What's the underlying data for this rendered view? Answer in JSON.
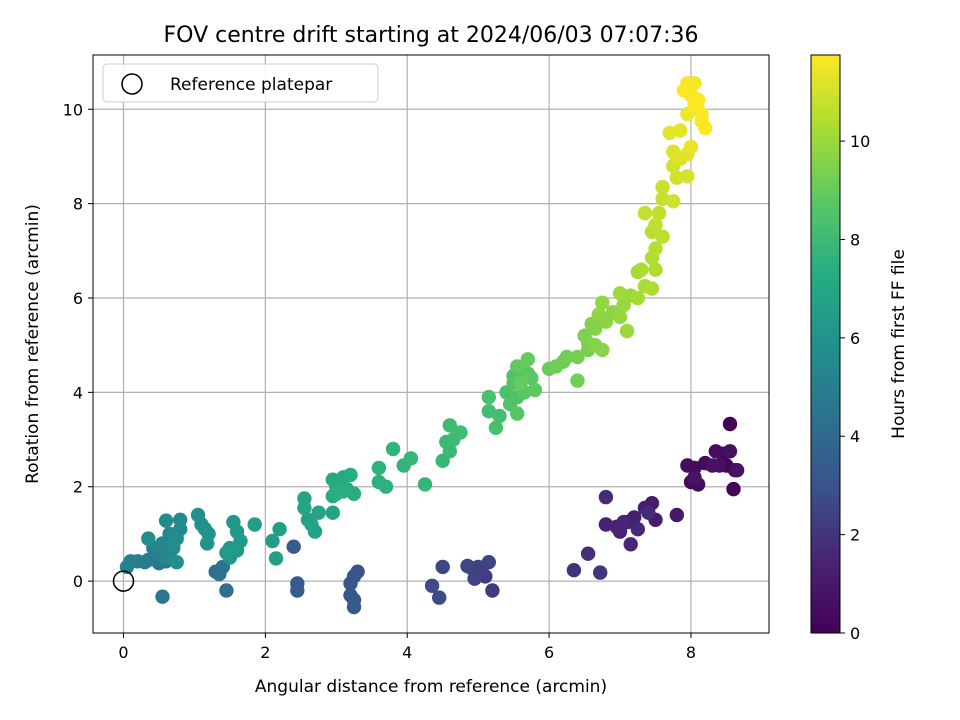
{
  "chart_data": {
    "type": "scatter",
    "title": "FOV centre drift starting at 2024/06/03 07:07:36",
    "xlabel": "Angular distance from reference (arcmin)",
    "ylabel": "Rotation from reference (arcmin)",
    "colorbar_label": "Hours from first FF file",
    "xlim": [
      -0.43,
      9.1
    ],
    "ylim": [
      -1.1,
      11.15
    ],
    "clim": [
      0,
      11.75
    ],
    "colormap": "viridis",
    "x_ticks": [
      0,
      2,
      4,
      6,
      8
    ],
    "y_ticks": [
      0,
      2,
      4,
      6,
      8,
      10
    ],
    "colorbar_ticks": [
      0,
      2,
      4,
      6,
      8,
      10
    ],
    "grid": true,
    "legend": {
      "position": "top-left",
      "entries": [
        "Reference platepar"
      ]
    },
    "reference_point": {
      "x": 0,
      "y": 0
    },
    "points": [
      [
        8.55,
        3.33,
        0.05
      ],
      [
        8.45,
        2.7,
        0.1
      ],
      [
        8.5,
        2.45,
        0.15
      ],
      [
        8.6,
        1.95,
        0.2
      ],
      [
        8.62,
        2.35,
        0.25
      ],
      [
        8.2,
        2.5,
        0.3
      ],
      [
        8.05,
        2.4,
        0.35
      ],
      [
        8.0,
        2.1,
        0.4
      ],
      [
        8.1,
        2.05,
        0.45
      ],
      [
        7.95,
        2.45,
        0.5
      ],
      [
        8.35,
        2.75,
        0.55
      ],
      [
        8.4,
        2.45,
        0.6
      ],
      [
        8.55,
        2.75,
        0.65
      ],
      [
        8.3,
        2.45,
        0.7
      ],
      [
        8.05,
        2.2,
        0.75
      ],
      [
        8.65,
        2.35,
        0.8
      ],
      [
        7.8,
        1.4,
        1.0
      ],
      [
        7.5,
        1.3,
        1.1
      ],
      [
        7.45,
        1.65,
        1.15
      ],
      [
        7.35,
        1.55,
        1.2
      ],
      [
        7.2,
        1.35,
        1.25
      ],
      [
        7.1,
        1.25,
        1.3
      ],
      [
        7.0,
        1.05,
        1.35
      ],
      [
        6.8,
        1.2,
        1.4
      ],
      [
        6.95,
        1.15,
        1.45
      ],
      [
        7.05,
        1.25,
        1.5
      ],
      [
        7.15,
        0.78,
        1.55
      ],
      [
        7.25,
        1.1,
        1.6
      ],
      [
        7.4,
        1.45,
        1.65
      ],
      [
        6.8,
        1.78,
        1.7
      ],
      [
        6.55,
        0.58,
        1.8
      ],
      [
        6.35,
        0.23,
        1.9
      ],
      [
        6.72,
        0.18,
        2.0
      ],
      [
        5.2,
        -0.2,
        2.2
      ],
      [
        5.1,
        0.1,
        2.25
      ],
      [
        5.0,
        0.3,
        2.3
      ],
      [
        4.9,
        0.28,
        2.35
      ],
      [
        5.05,
        0.25,
        2.4
      ],
      [
        4.95,
        0.05,
        2.45
      ],
      [
        5.15,
        0.4,
        2.5
      ],
      [
        4.85,
        0.32,
        2.55
      ],
      [
        4.5,
        0.3,
        2.6
      ],
      [
        4.45,
        -0.35,
        2.7
      ],
      [
        4.35,
        -0.1,
        2.75
      ],
      [
        3.3,
        0.2,
        3.0
      ],
      [
        3.25,
        0.1,
        3.05
      ],
      [
        3.2,
        -0.05,
        3.1
      ],
      [
        3.25,
        -0.4,
        3.15
      ],
      [
        3.2,
        -0.3,
        3.2
      ],
      [
        3.25,
        -0.55,
        3.25
      ],
      [
        2.45,
        -0.05,
        3.3
      ],
      [
        2.45,
        -0.2,
        3.35
      ],
      [
        2.4,
        0.73,
        3.4
      ],
      [
        1.45,
        -0.2,
        4.2
      ],
      [
        1.3,
        0.2,
        4.3
      ],
      [
        1.35,
        0.15,
        4.35
      ],
      [
        1.4,
        0.3,
        4.4
      ],
      [
        0.55,
        -0.33,
        4.6
      ],
      [
        0.6,
        0.42,
        4.65
      ],
      [
        0.5,
        0.38,
        4.7
      ],
      [
        0.35,
        0.45,
        4.8
      ],
      [
        0.2,
        0.42,
        4.9
      ],
      [
        0.3,
        0.4,
        4.95
      ],
      [
        0.1,
        0.42,
        5.0
      ],
      [
        0.05,
        0.3,
        5.05
      ],
      [
        0.42,
        0.7,
        5.1
      ],
      [
        0.5,
        0.6,
        5.15
      ],
      [
        0.65,
        0.55,
        5.2
      ],
      [
        0.55,
        0.8,
        5.25
      ],
      [
        0.7,
        0.7,
        5.3
      ],
      [
        0.6,
        0.5,
        5.35
      ],
      [
        0.75,
        0.9,
        5.4
      ],
      [
        0.65,
        1.0,
        5.45
      ],
      [
        0.8,
        1.1,
        5.5
      ],
      [
        0.6,
        1.28,
        5.55
      ],
      [
        0.8,
        1.3,
        5.6
      ],
      [
        0.72,
        0.9,
        5.65
      ],
      [
        0.7,
        0.75,
        5.7
      ],
      [
        0.35,
        0.9,
        5.75
      ],
      [
        0.75,
        0.4,
        5.8
      ],
      [
        1.05,
        1.4,
        5.85
      ],
      [
        1.1,
        1.2,
        5.9
      ],
      [
        1.15,
        1.1,
        5.95
      ],
      [
        1.2,
        1.0,
        6.0
      ],
      [
        1.18,
        0.8,
        6.05
      ],
      [
        1.5,
        0.5,
        6.1
      ],
      [
        1.5,
        0.7,
        6.15
      ],
      [
        1.55,
        1.25,
        6.2
      ],
      [
        1.6,
        1.05,
        6.25
      ],
      [
        1.65,
        0.85,
        6.3
      ],
      [
        1.6,
        0.65,
        6.35
      ],
      [
        1.45,
        0.6,
        6.4
      ],
      [
        1.85,
        1.2,
        6.45
      ],
      [
        2.1,
        0.85,
        6.5
      ],
      [
        2.15,
        0.48,
        6.55
      ],
      [
        2.2,
        1.1,
        6.6
      ],
      [
        2.6,
        1.3,
        6.65
      ],
      [
        2.75,
        1.45,
        6.7
      ],
      [
        2.7,
        1.05,
        6.75
      ],
      [
        2.65,
        1.2,
        6.8
      ],
      [
        2.95,
        1.45,
        6.85
      ],
      [
        2.55,
        1.55,
        6.9
      ],
      [
        2.55,
        1.75,
        6.95
      ],
      [
        2.95,
        1.8,
        7.0
      ],
      [
        3.0,
        2.0,
        7.05
      ],
      [
        3.05,
        2.1,
        7.1
      ],
      [
        2.95,
        2.15,
        7.15
      ],
      [
        3.1,
        2.2,
        7.2
      ],
      [
        3.15,
        1.95,
        7.25
      ],
      [
        3.25,
        1.85,
        7.3
      ],
      [
        3.2,
        2.25,
        7.35
      ],
      [
        3.0,
        1.85,
        7.4
      ],
      [
        3.1,
        1.9,
        7.45
      ],
      [
        3.6,
        2.1,
        7.5
      ],
      [
        3.7,
        2.0,
        7.55
      ],
      [
        3.6,
        2.4,
        7.6
      ],
      [
        3.8,
        2.8,
        7.65
      ],
      [
        3.95,
        2.45,
        7.7
      ],
      [
        4.05,
        2.6,
        7.75
      ],
      [
        4.25,
        2.05,
        7.8
      ],
      [
        4.5,
        2.55,
        7.85
      ],
      [
        4.6,
        2.75,
        7.9
      ],
      [
        4.55,
        2.95,
        7.95
      ],
      [
        4.65,
        3.0,
        8.0
      ],
      [
        4.6,
        3.3,
        8.05
      ],
      [
        4.75,
        3.15,
        8.1
      ],
      [
        5.15,
        3.6,
        8.15
      ],
      [
        5.3,
        3.5,
        8.2
      ],
      [
        5.25,
        3.25,
        8.25
      ],
      [
        5.15,
        3.9,
        8.3
      ],
      [
        5.4,
        4.0,
        8.35
      ],
      [
        5.5,
        4.35,
        8.4
      ],
      [
        5.55,
        3.9,
        8.45
      ],
      [
        5.45,
        3.75,
        8.5
      ],
      [
        5.5,
        4.2,
        8.55
      ],
      [
        5.6,
        4.45,
        8.6
      ],
      [
        5.55,
        3.55,
        8.65
      ],
      [
        5.7,
        4.4,
        8.7
      ],
      [
        5.65,
        4.0,
        8.75
      ],
      [
        5.75,
        4.3,
        8.8
      ],
      [
        5.8,
        4.05,
        8.85
      ],
      [
        5.55,
        4.55,
        8.9
      ],
      [
        5.7,
        4.7,
        8.95
      ],
      [
        5.6,
        4.2,
        9.0
      ],
      [
        6.0,
        4.5,
        9.05
      ],
      [
        6.1,
        4.55,
        9.1
      ],
      [
        6.2,
        4.65,
        9.15
      ],
      [
        6.25,
        4.75,
        9.2
      ],
      [
        6.4,
        4.25,
        9.25
      ],
      [
        6.4,
        4.75,
        9.3
      ],
      [
        6.55,
        4.9,
        9.35
      ],
      [
        6.55,
        5.05,
        9.4
      ],
      [
        6.5,
        5.2,
        9.45
      ],
      [
        6.6,
        5.45,
        9.5
      ],
      [
        6.65,
        5.35,
        9.55
      ],
      [
        6.65,
        5.0,
        9.6
      ],
      [
        6.75,
        4.9,
        9.65
      ],
      [
        6.8,
        5.5,
        9.7
      ],
      [
        6.9,
        5.7,
        9.75
      ],
      [
        6.7,
        5.65,
        9.8
      ],
      [
        6.75,
        5.9,
        9.85
      ],
      [
        7.0,
        5.6,
        9.9
      ],
      [
        7.05,
        5.85,
        9.95
      ],
      [
        7.1,
        5.3,
        10.0
      ],
      [
        7.15,
        6.05,
        10.05
      ],
      [
        7.0,
        6.1,
        10.1
      ],
      [
        7.25,
        6.0,
        10.15
      ],
      [
        7.25,
        6.55,
        10.2
      ],
      [
        7.35,
        6.25,
        10.25
      ],
      [
        7.3,
        6.6,
        10.3
      ],
      [
        7.45,
        6.2,
        10.35
      ],
      [
        7.5,
        6.6,
        10.4
      ],
      [
        7.45,
        6.85,
        10.45
      ],
      [
        7.5,
        7.05,
        10.5
      ],
      [
        7.45,
        7.4,
        10.55
      ],
      [
        7.6,
        7.3,
        10.6
      ],
      [
        7.5,
        7.55,
        10.65
      ],
      [
        7.55,
        7.8,
        10.7
      ],
      [
        7.35,
        7.8,
        10.75
      ],
      [
        7.6,
        8.1,
        10.8
      ],
      [
        7.6,
        8.35,
        10.85
      ],
      [
        7.75,
        8.05,
        10.9
      ],
      [
        7.8,
        8.55,
        10.95
      ],
      [
        7.75,
        8.8,
        11.0
      ],
      [
        7.95,
        8.58,
        11.05
      ],
      [
        7.8,
        9.0,
        11.1
      ],
      [
        7.75,
        9.1,
        11.15
      ],
      [
        7.85,
        8.95,
        11.2
      ],
      [
        7.95,
        9.05,
        11.25
      ],
      [
        7.7,
        9.5,
        11.3
      ],
      [
        7.85,
        9.55,
        11.35
      ],
      [
        8.0,
        9.2,
        11.4
      ],
      [
        7.95,
        9.9,
        11.45
      ],
      [
        8.1,
        10.0,
        11.5
      ],
      [
        8.0,
        10.3,
        11.55
      ],
      [
        7.95,
        10.55,
        11.6
      ],
      [
        8.05,
        10.55,
        11.65
      ],
      [
        8.1,
        10.2,
        11.7
      ],
      [
        8.15,
        9.75,
        11.75
      ],
      [
        8.2,
        9.6,
        11.75
      ],
      [
        8.15,
        9.9,
        11.7
      ],
      [
        8.05,
        10.1,
        11.72
      ],
      [
        7.9,
        10.4,
        11.74
      ]
    ]
  }
}
